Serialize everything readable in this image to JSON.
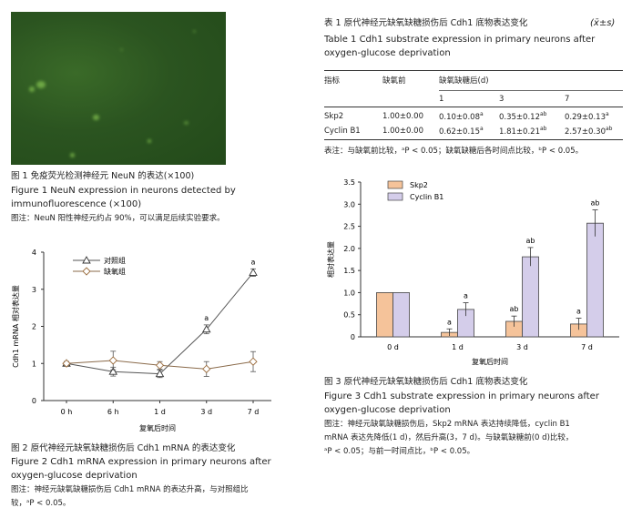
{
  "fig1": {
    "caption_cn": "图 1   免疫荧光检测神经元 NeuN 的表达(×100)",
    "caption_en_1": "Figure 1    NeuN expression in neurons detected by",
    "caption_en_2": "immunofluorescence (×100)",
    "note": "图注：NeuN 阳性神经元约占 90%，可以满足后续实验要求。"
  },
  "table1": {
    "title_cn": "表 1    原代神经元缺氧缺糖损伤后 Cdh1 底物表达变化",
    "title_stat": "(x̄±s)",
    "title_en_1": "Table 1    Cdh1 substrate expression in primary neurons after",
    "title_en_2": "oxygen-glucose deprivation",
    "headers": {
      "indicator": "指标",
      "before": "缺氧前",
      "ogd": "缺氧缺糖后(d)",
      "d1": "1",
      "d3": "3",
      "d7": "7"
    },
    "rows": [
      {
        "name": "Skp2",
        "before": "1.00±0.00",
        "d1": "0.10±0.08",
        "d1_sup": "a",
        "d3": "0.35±0.12",
        "d3_sup": "ab",
        "d7": "0.29±0.13",
        "d7_sup": "a"
      },
      {
        "name": "Cyclin B1",
        "before": "1.00±0.00",
        "d1": "0.62±0.15",
        "d1_sup": "a",
        "d3": "1.81±0.21",
        "d3_sup": "ab",
        "d7": "2.57±0.30",
        "d7_sup": "ab"
      }
    ],
    "note": "表注：与缺氧前比较，ᵃP < 0.05；缺氧缺糖后各时间点比较，ᵇP < 0.05。"
  },
  "fig2": {
    "caption_cn": "图 2   原代神经元缺氧缺糖损伤后 Cdh1 mRNA 的表达变化",
    "caption_en_1": "Figure 2    Cdh1 mRNA expression in primary neurons after",
    "caption_en_2": "oxygen-glucose deprivation",
    "note_1": "图注：神经元缺氧缺糖损伤后 Cdh1 mRNA 的表达升高，与对照组比",
    "note_2": "较，ᵃP < 0.05。"
  },
  "fig3": {
    "caption_cn": "图 3    原代神经元缺氧缺糖损伤后 Cdh1 底物表达变化",
    "caption_en_1": "Figure 3    Cdh1 substrate expression in primary neurons after",
    "caption_en_2": "oxygen-glucose deprivation",
    "note_1": "图注：神经元缺氧缺糖损伤后，Skp2 mRNA 表达持续降低，cyclin B1",
    "note_2": "mRNA 表达先降低(1 d)，然后升高(3，7 d)。与缺氧缺糖前(0 d)比较，",
    "note_3": "ᵃP < 0.05；与前一时间点比，ᵇP < 0.05。"
  },
  "chart_data": [
    {
      "type": "line",
      "xlabel": "复氧后时间",
      "ylabel": "Cdh1 mRNA 相对表达量",
      "categories": [
        "0 h",
        "6 h",
        "1 d",
        "3 d",
        "7 d"
      ],
      "ylim": [
        0,
        4
      ],
      "yticks": [
        "0",
        "1",
        "2",
        "3",
        "4"
      ],
      "legend_position": "top-left",
      "series": [
        {
          "name": "对照组",
          "marker": "triangle",
          "values": [
            1.0,
            0.78,
            0.72,
            1.92,
            3.45
          ],
          "errors": [
            0.05,
            0.12,
            0.1,
            0.12,
            0.1
          ],
          "labels": [
            "",
            "",
            "",
            "a",
            "a"
          ]
        },
        {
          "name": "缺氧组",
          "marker": "diamond",
          "values": [
            1.0,
            1.08,
            0.95,
            0.85,
            1.05
          ],
          "errors": [
            0.05,
            0.25,
            0.1,
            0.2,
            0.27
          ],
          "labels": [
            "",
            "",
            "",
            "",
            ""
          ]
        }
      ]
    },
    {
      "type": "bar",
      "xlabel": "复氧后时间",
      "ylabel": "相对表达量",
      "categories": [
        "0 d",
        "1 d",
        "3 d",
        "7 d"
      ],
      "ylim": [
        0,
        3.5
      ],
      "yticks": [
        "0",
        "0.5",
        "1.0",
        "1.5",
        "2.0",
        "2.5",
        "3.0",
        "3.5"
      ],
      "legend_position": "top-left",
      "series": [
        {
          "name": "Skp2",
          "color": "#f5c39a",
          "values": [
            1.0,
            0.1,
            0.35,
            0.29
          ],
          "errors": [
            0.0,
            0.08,
            0.12,
            0.13
          ],
          "labels": [
            "",
            "a",
            "ab",
            "a"
          ]
        },
        {
          "name": "Cyclin B1",
          "color": "#d4cdea",
          "values": [
            1.0,
            0.62,
            1.81,
            2.57
          ],
          "errors": [
            0.0,
            0.15,
            0.21,
            0.3
          ],
          "labels": [
            "",
            "a",
            "ab",
            "ab"
          ]
        }
      ]
    }
  ]
}
